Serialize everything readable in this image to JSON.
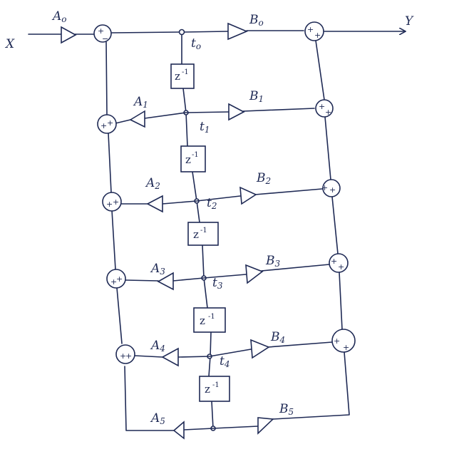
{
  "input_label": "X",
  "output_label": "Y",
  "stages": [
    {
      "a": {
        "main": "A",
        "sub": "o"
      },
      "b": {
        "main": "B",
        "sub": "o"
      },
      "t": {
        "main": "t",
        "sub": "o"
      },
      "left_sum": [
        "+",
        "−"
      ],
      "right_sum": [
        "+",
        "+"
      ]
    },
    {
      "a": {
        "main": "A",
        "sub": "1"
      },
      "b": {
        "main": "B",
        "sub": "1"
      },
      "t": {
        "main": "t",
        "sub": "1"
      },
      "left_sum": [
        "+",
        "+"
      ],
      "right_sum": [
        "+",
        "+"
      ]
    },
    {
      "a": {
        "main": "A",
        "sub": "2"
      },
      "b": {
        "main": "B",
        "sub": "2"
      },
      "t": {
        "main": "t",
        "sub": "2"
      },
      "left_sum": [
        "+",
        "+"
      ],
      "right_sum": [
        "+",
        "+"
      ]
    },
    {
      "a": {
        "main": "A",
        "sub": "3"
      },
      "b": {
        "main": "B",
        "sub": "3"
      },
      "t": {
        "main": "t",
        "sub": "3"
      },
      "left_sum": [
        "+",
        "+"
      ],
      "right_sum": [
        "+",
        "+"
      ]
    },
    {
      "a": {
        "main": "A",
        "sub": "4"
      },
      "b": {
        "main": "B",
        "sub": "4"
      },
      "t": {
        "main": "t",
        "sub": "4"
      },
      "left_sum": [
        "+",
        "+"
      ],
      "right_sum": [
        "+",
        "+"
      ]
    },
    {
      "a": {
        "main": "A",
        "sub": "5"
      },
      "b": {
        "main": "B",
        "sub": "5"
      }
    }
  ],
  "delay": {
    "main": "z",
    "sup": "-1"
  }
}
